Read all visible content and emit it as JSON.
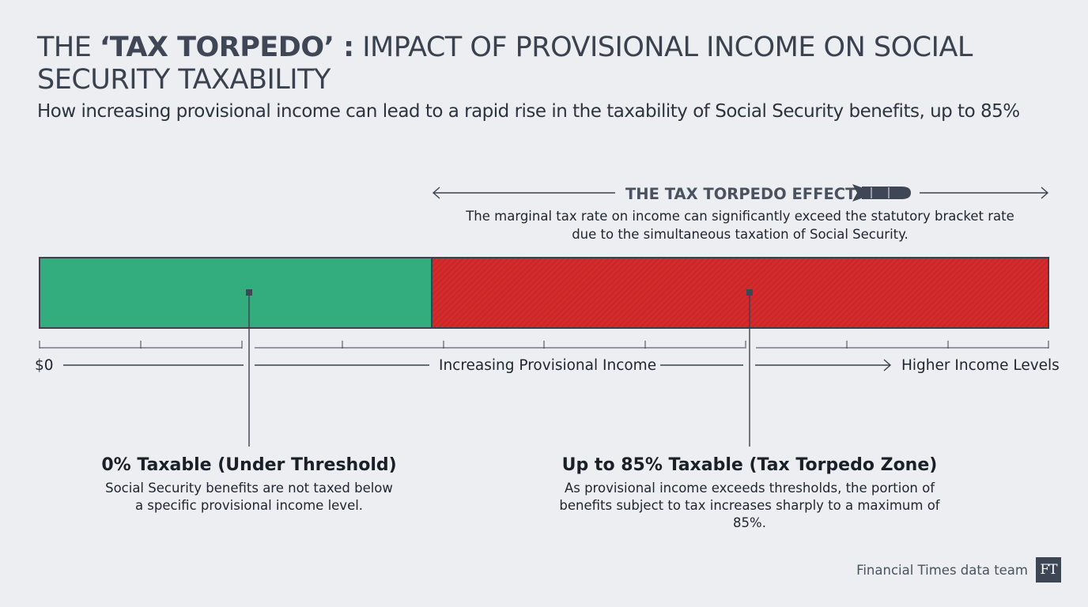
{
  "title": {
    "prefix": "THE ",
    "highlight": "‘TAX TORPEDO’ :",
    "rest": " IMPACT OF PROVISIONAL INCOME ON SOCIAL SECURITY TAXABILITY"
  },
  "subtitle": "How increasing provisional income can lead to a rapid rise in the taxability of Social Security benefits, up to 85%",
  "effect": {
    "title": "THE TAX TORPEDO EFFECT",
    "icon": "torpedo-icon",
    "description": "The marginal tax rate on income can significantly exceed the statutory bracket rate due to the simultaneous taxation of Social Security."
  },
  "zones": [
    {
      "name": "under-threshold",
      "color": "#34ad7e"
    },
    {
      "name": "tax-torpedo-zone",
      "color": "#d42a2c"
    }
  ],
  "axis": {
    "start_label": "$0",
    "middle_label": "Increasing Provisional Income",
    "end_label": "Higher Income Levels"
  },
  "callouts": [
    {
      "title": "0% Taxable (Under Threshold)",
      "description": "Social Security benefits are not taxed below a specific provisional income level."
    },
    {
      "title": "Up to 85% Taxable (Tax Torpedo Zone)",
      "description": "As provisional income exceeds thresholds, the portion of benefits subject to tax increases sharply to a maximum of 85%."
    }
  ],
  "source": "Financial Times data team",
  "logo_text": "FT",
  "colors": {
    "background": "#eceef1",
    "text": "#2c3440",
    "accent": "#4a5260"
  }
}
